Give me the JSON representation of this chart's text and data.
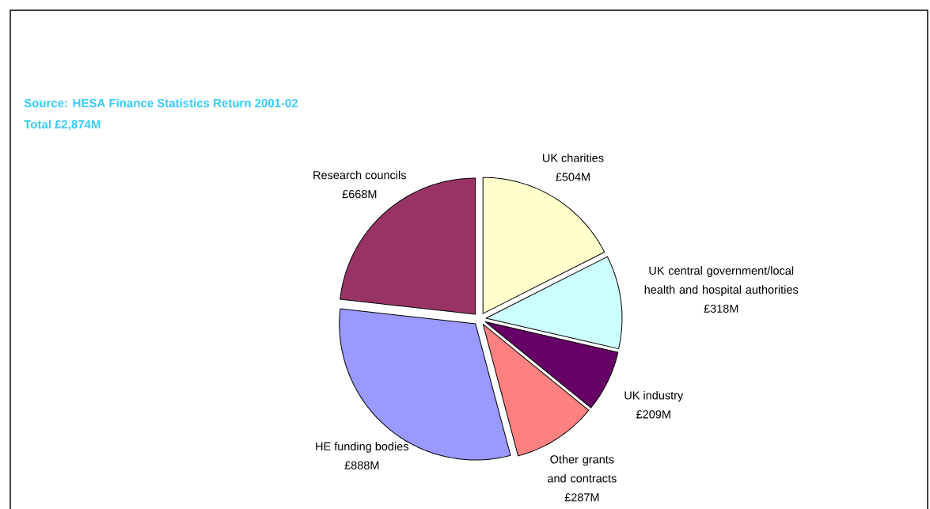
{
  "chart_data": {
    "type": "pie",
    "title": "Source: HESA Finance Statistics Return 2001-02",
    "subtitle": "Total £2,874M",
    "categories": [
      "UK charities",
      "UK central government/local health and hospital authorities",
      "UK industry",
      "Other grants and contracts",
      "HE funding bodies",
      "Research councils"
    ],
    "values": [
      504,
      318,
      209,
      287,
      888,
      668
    ],
    "value_labels": [
      "£504M",
      "£318M",
      "£209M",
      "£287M",
      "£888M",
      "£668M"
    ],
    "colors": [
      "#ffffcc",
      "#ccffff",
      "#660066",
      "#ff8080",
      "#9999ff",
      "#993366"
    ]
  }
}
